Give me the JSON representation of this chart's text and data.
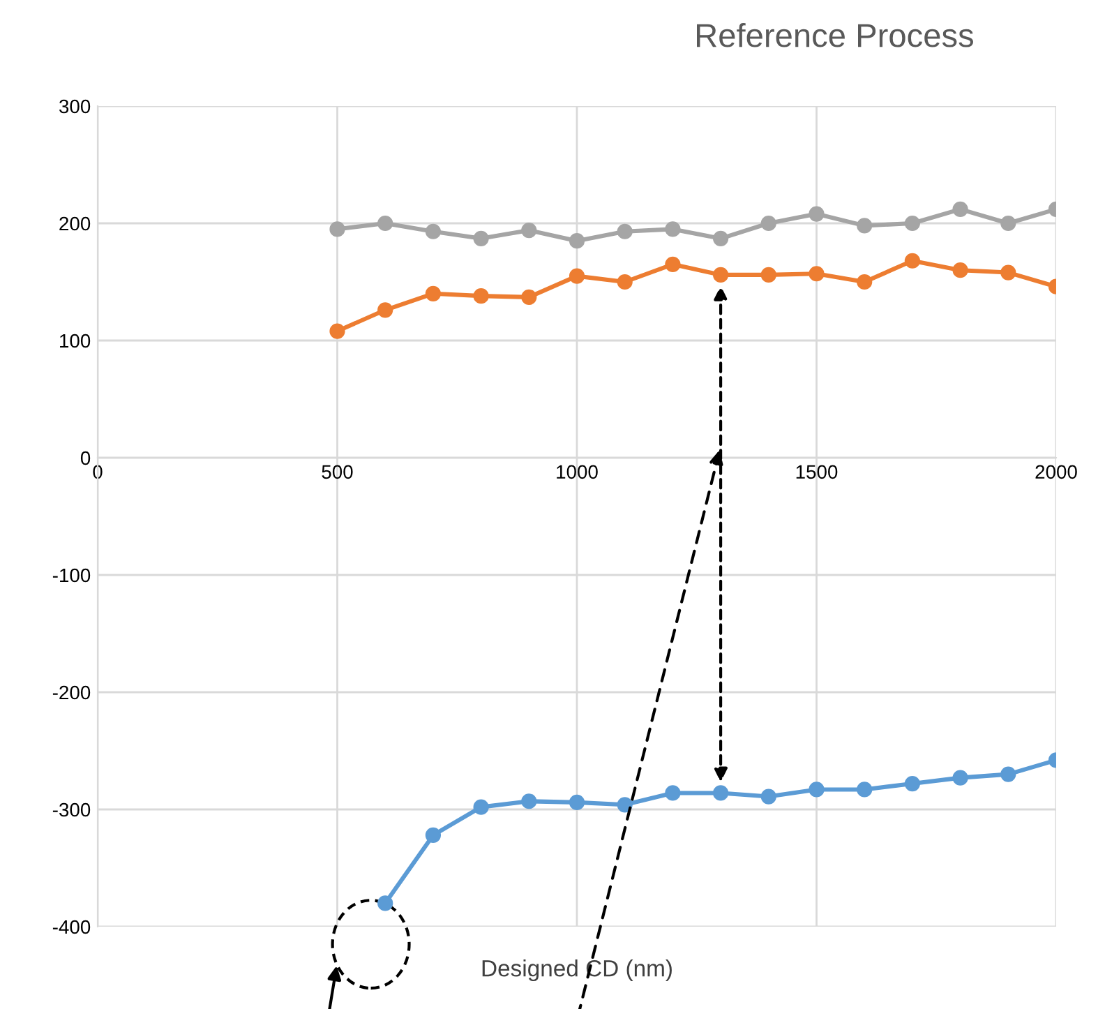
{
  "chart_data": {
    "type": "line",
    "title": "Reference Process",
    "xlabel": "Designed CD (nm)",
    "xlim": [
      0,
      2000
    ],
    "xticks": [
      0,
      500,
      1000,
      1500,
      2000
    ],
    "ylim": [
      -400,
      300
    ],
    "yticks": [
      -400,
      -300,
      -200,
      -100,
      0,
      100,
      200,
      300
    ],
    "grid": true,
    "marker": "circle",
    "line_style": "solid",
    "series": [
      {
        "color": "#a5a5a5",
        "x": [
          500,
          600,
          700,
          800,
          900,
          1000,
          1100,
          1200,
          1300,
          1400,
          1500,
          1600,
          1700,
          1800,
          1900,
          2000
        ],
        "values": [
          195,
          200,
          193,
          187,
          194,
          185,
          193,
          195,
          187,
          200,
          208,
          198,
          200,
          212,
          200,
          212
        ]
      },
      {
        "color": "#ed7d31",
        "x": [
          500,
          600,
          700,
          800,
          900,
          1000,
          1100,
          1200,
          1300,
          1400,
          1500,
          1600,
          1700,
          1800,
          1900,
          2000
        ],
        "values": [
          108,
          126,
          140,
          138,
          137,
          155,
          150,
          165,
          156,
          156,
          157,
          150,
          168,
          160,
          158,
          146
        ]
      },
      {
        "color": "#5b9bd5",
        "x": [
          600,
          700,
          800,
          900,
          1000,
          1100,
          1200,
          1300,
          1400,
          1500,
          1600,
          1700,
          1800,
          1900,
          2000
        ],
        "values": [
          -380,
          -322,
          -298,
          -293,
          -294,
          -296,
          -286,
          -286,
          -289,
          -283,
          -283,
          -278,
          -273,
          -270,
          -258
        ]
      }
    ]
  }
}
